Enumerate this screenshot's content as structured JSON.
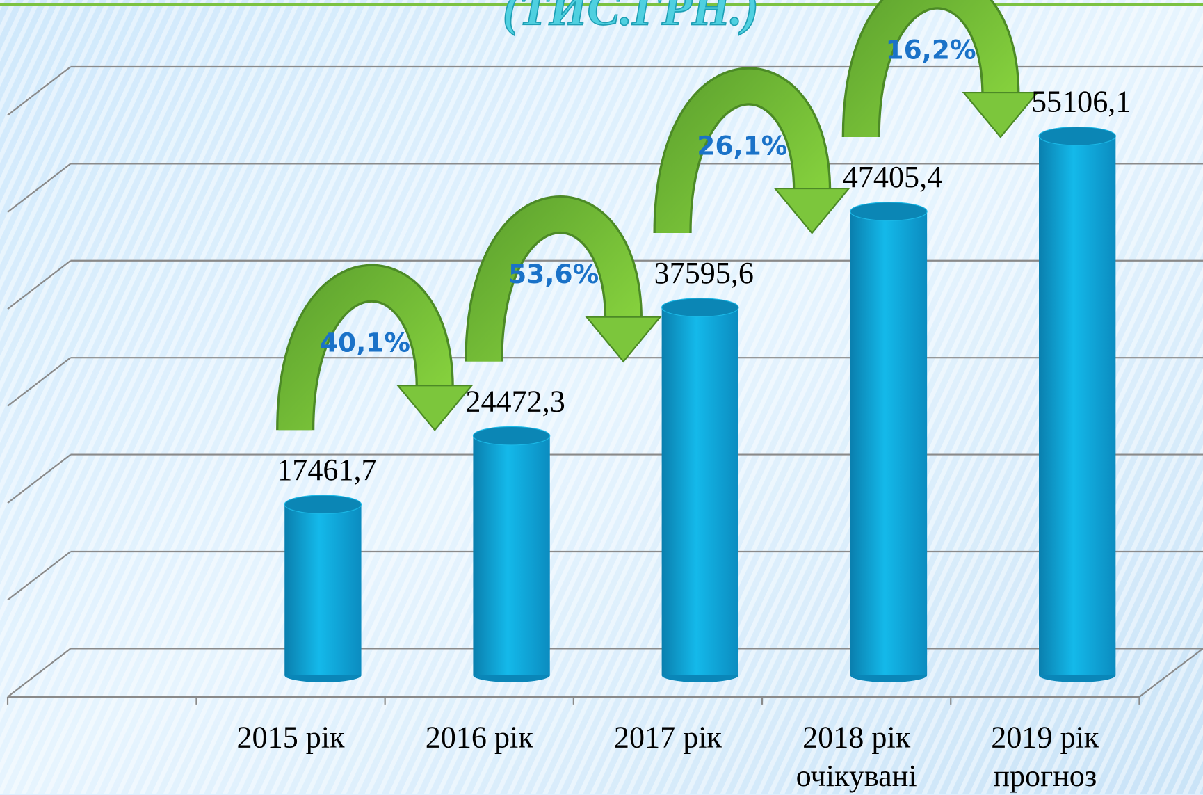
{
  "chart_data": {
    "type": "bar",
    "title": "(ТИС.ГРН.)",
    "categories": [
      "2015 рік",
      "2016 рік",
      "2017 рік",
      "2018 рік\nочікувані",
      "2019 рік\nпрогноз"
    ],
    "values": [
      17461.7,
      24472.3,
      37595.6,
      47405.4,
      55106.1
    ],
    "value_labels": [
      "17461,7",
      "24472,3",
      "37595,6",
      "47405,4",
      "55106,1"
    ],
    "annotations": [
      "40,1%",
      "53,6%",
      "26,1%",
      "16,2%"
    ],
    "color": "#12b2e2",
    "ylim": [
      0,
      60000
    ],
    "yticks": [
      0,
      10000,
      20000,
      30000,
      40000,
      50000,
      60000
    ],
    "grid": true
  }
}
